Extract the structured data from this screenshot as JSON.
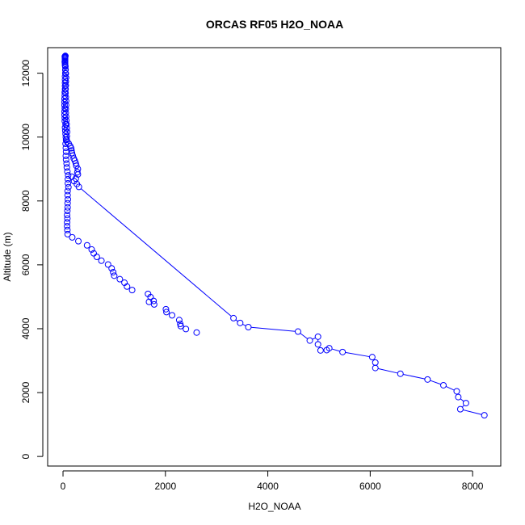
{
  "chart_data": {
    "type": "scatter",
    "title": "ORCAS RF05 H2O_NOAA",
    "xlabel": "H2O_NOAA",
    "ylabel": "Altitude (m)",
    "xlim": [
      -300,
      8550
    ],
    "ylim": [
      -300,
      12800
    ],
    "xticks": [
      0,
      2000,
      4000,
      6000,
      8000
    ],
    "yticks": [
      0,
      2000,
      4000,
      6000,
      8000,
      10000,
      12000
    ],
    "grid": false,
    "legend": "none",
    "colors": {
      "series": "#0000ff",
      "axis": "#000000",
      "background": "#ffffff"
    },
    "series": [
      {
        "marker": "open-circle",
        "line_segments": true,
        "points": [
          [
            8230,
            1290
          ],
          [
            7760,
            1480
          ],
          [
            7870,
            1670
          ],
          [
            7720,
            1860
          ],
          [
            7690,
            2040
          ],
          [
            7430,
            2230
          ],
          [
            7120,
            2410
          ],
          [
            6590,
            2590
          ],
          [
            6100,
            2770
          ],
          [
            6100,
            2940
          ],
          [
            6040,
            3110
          ],
          [
            5460,
            3270
          ],
          [
            5200,
            3390
          ],
          [
            5150,
            3330
          ],
          [
            5030,
            3320
          ],
          [
            4980,
            3510
          ],
          [
            4980,
            3750
          ],
          [
            4820,
            3630
          ],
          [
            4590,
            3910
          ],
          [
            3620,
            4050
          ],
          [
            3460,
            4180
          ],
          [
            3330,
            4330
          ],
          [
            310,
            8440
          ],
          [
            270,
            8530
          ],
          [
            215,
            8620
          ],
          [
            250,
            8700
          ],
          [
            170,
            8760
          ],
          [
            290,
            8830
          ],
          [
            280,
            8900
          ],
          [
            290,
            9000
          ],
          [
            260,
            9100
          ],
          [
            250,
            9180
          ],
          [
            230,
            9260
          ],
          [
            210,
            9330
          ],
          [
            190,
            9420
          ],
          [
            175,
            9500
          ],
          [
            165,
            9580
          ],
          [
            160,
            9650
          ],
          [
            140,
            9720
          ],
          [
            110,
            9800
          ],
          [
            80,
            9850
          ],
          [
            70,
            9920
          ],
          [
            55,
            10000
          ],
          [
            50,
            10100
          ],
          [
            45,
            10200
          ],
          [
            40,
            10300
          ],
          [
            50,
            10400
          ],
          [
            35,
            10500
          ],
          [
            35,
            10600
          ],
          [
            30,
            10700
          ],
          [
            30,
            10800
          ],
          [
            35,
            10900
          ],
          [
            30,
            11000
          ],
          [
            30,
            11100
          ],
          [
            30,
            11200
          ],
          [
            35,
            11300
          ],
          [
            35,
            11400
          ],
          [
            40,
            11500
          ],
          [
            40,
            11600
          ],
          [
            40,
            11700
          ],
          [
            40,
            11800
          ],
          [
            40,
            11900
          ],
          [
            45,
            12000
          ],
          [
            45,
            12100
          ],
          [
            45,
            12200
          ],
          [
            40,
            12250
          ],
          [
            40,
            12300
          ],
          [
            35,
            12350
          ],
          [
            40,
            12400
          ],
          [
            40,
            12450
          ],
          [
            40,
            12480
          ],
          [
            40,
            12500
          ],
          [
            40,
            12520
          ],
          [
            40,
            12530
          ],
          [
            45,
            12540
          ]
        ]
      },
      {
        "marker": "open-circle",
        "line_segments": false,
        "points": [
          [
            2610,
            3880
          ],
          [
            2400,
            3990
          ],
          [
            2300,
            4080
          ],
          [
            2290,
            4150
          ],
          [
            2270,
            4270
          ],
          [
            2130,
            4420
          ],
          [
            2020,
            4520
          ],
          [
            2010,
            4610
          ],
          [
            1780,
            4760
          ],
          [
            1770,
            4870
          ],
          [
            1710,
            4990
          ],
          [
            1680,
            4840
          ],
          [
            1660,
            5090
          ],
          [
            1350,
            5210
          ],
          [
            1250,
            5320
          ],
          [
            1200,
            5440
          ],
          [
            1110,
            5550
          ],
          [
            1000,
            5660
          ],
          [
            980,
            5770
          ],
          [
            950,
            5890
          ],
          [
            880,
            6010
          ],
          [
            750,
            6130
          ],
          [
            660,
            6250
          ],
          [
            600,
            6360
          ],
          [
            560,
            6480
          ],
          [
            470,
            6610
          ],
          [
            300,
            6740
          ],
          [
            180,
            6860
          ],
          [
            90,
            6960
          ],
          [
            85,
            7090
          ],
          [
            80,
            7210
          ],
          [
            80,
            7330
          ],
          [
            85,
            7450
          ],
          [
            80,
            7560
          ],
          [
            85,
            7690
          ],
          [
            90,
            7800
          ],
          [
            90,
            7930
          ],
          [
            95,
            8050
          ],
          [
            90,
            8180
          ],
          [
            90,
            8310
          ],
          [
            105,
            8430
          ],
          [
            95,
            8550
          ],
          [
            95,
            8680
          ],
          [
            100,
            8800
          ],
          [
            85,
            8920
          ],
          [
            75,
            9050
          ],
          [
            70,
            9170
          ],
          [
            60,
            9290
          ],
          [
            55,
            9410
          ],
          [
            60,
            9540
          ],
          [
            55,
            9660
          ],
          [
            50,
            9790
          ],
          [
            60,
            9910
          ],
          [
            75,
            10030
          ],
          [
            80,
            10160
          ],
          [
            75,
            10280
          ],
          [
            70,
            10400
          ],
          [
            65,
            10520
          ],
          [
            60,
            10640
          ],
          [
            55,
            10760
          ],
          [
            55,
            10880
          ],
          [
            60,
            11000
          ],
          [
            60,
            11130
          ],
          [
            55,
            11250
          ],
          [
            50,
            11380
          ],
          [
            50,
            11500
          ],
          [
            55,
            11620
          ],
          [
            55,
            11740
          ],
          [
            60,
            11860
          ],
          [
            55,
            11990
          ],
          [
            50,
            12110
          ],
          [
            45,
            12230
          ],
          [
            40,
            12350
          ],
          [
            40,
            12440
          ],
          [
            40,
            12500
          ],
          [
            35,
            12520
          ],
          [
            45,
            12540
          ]
        ]
      }
    ]
  }
}
